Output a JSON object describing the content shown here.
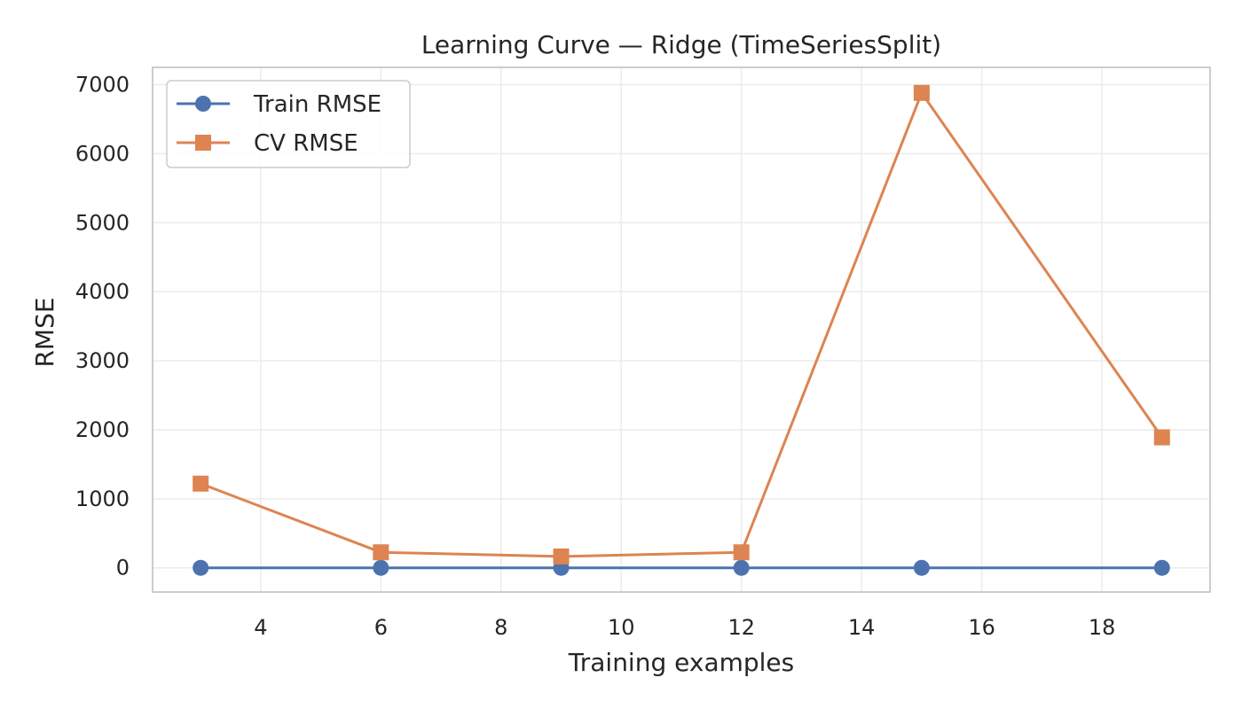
{
  "chart_data": {
    "type": "line",
    "title": "Learning Curve — Ridge (TimeSeriesSplit)",
    "xlabel": "Training examples",
    "ylabel": "RMSE",
    "xlim": [
      2.2,
      19.8
    ],
    "ylim": [
      -350,
      7250
    ],
    "xticks": [
      4,
      6,
      8,
      10,
      12,
      14,
      16,
      18
    ],
    "yticks": [
      0,
      1000,
      2000,
      3000,
      4000,
      5000,
      6000,
      7000
    ],
    "grid": true,
    "legend": {
      "placement": "upper-left"
    },
    "series": [
      {
        "name": "Train RMSE",
        "marker": "circle",
        "color": "#4c72b0",
        "x": [
          3,
          6,
          9,
          12,
          15,
          19
        ],
        "y": [
          0,
          0,
          0,
          0,
          0,
          0
        ]
      },
      {
        "name": "CV RMSE",
        "marker": "square",
        "color": "#dd8452",
        "x": [
          3,
          6,
          9,
          12,
          15,
          19
        ],
        "y": [
          1220,
          225,
          165,
          225,
          6880,
          1890
        ]
      }
    ]
  }
}
